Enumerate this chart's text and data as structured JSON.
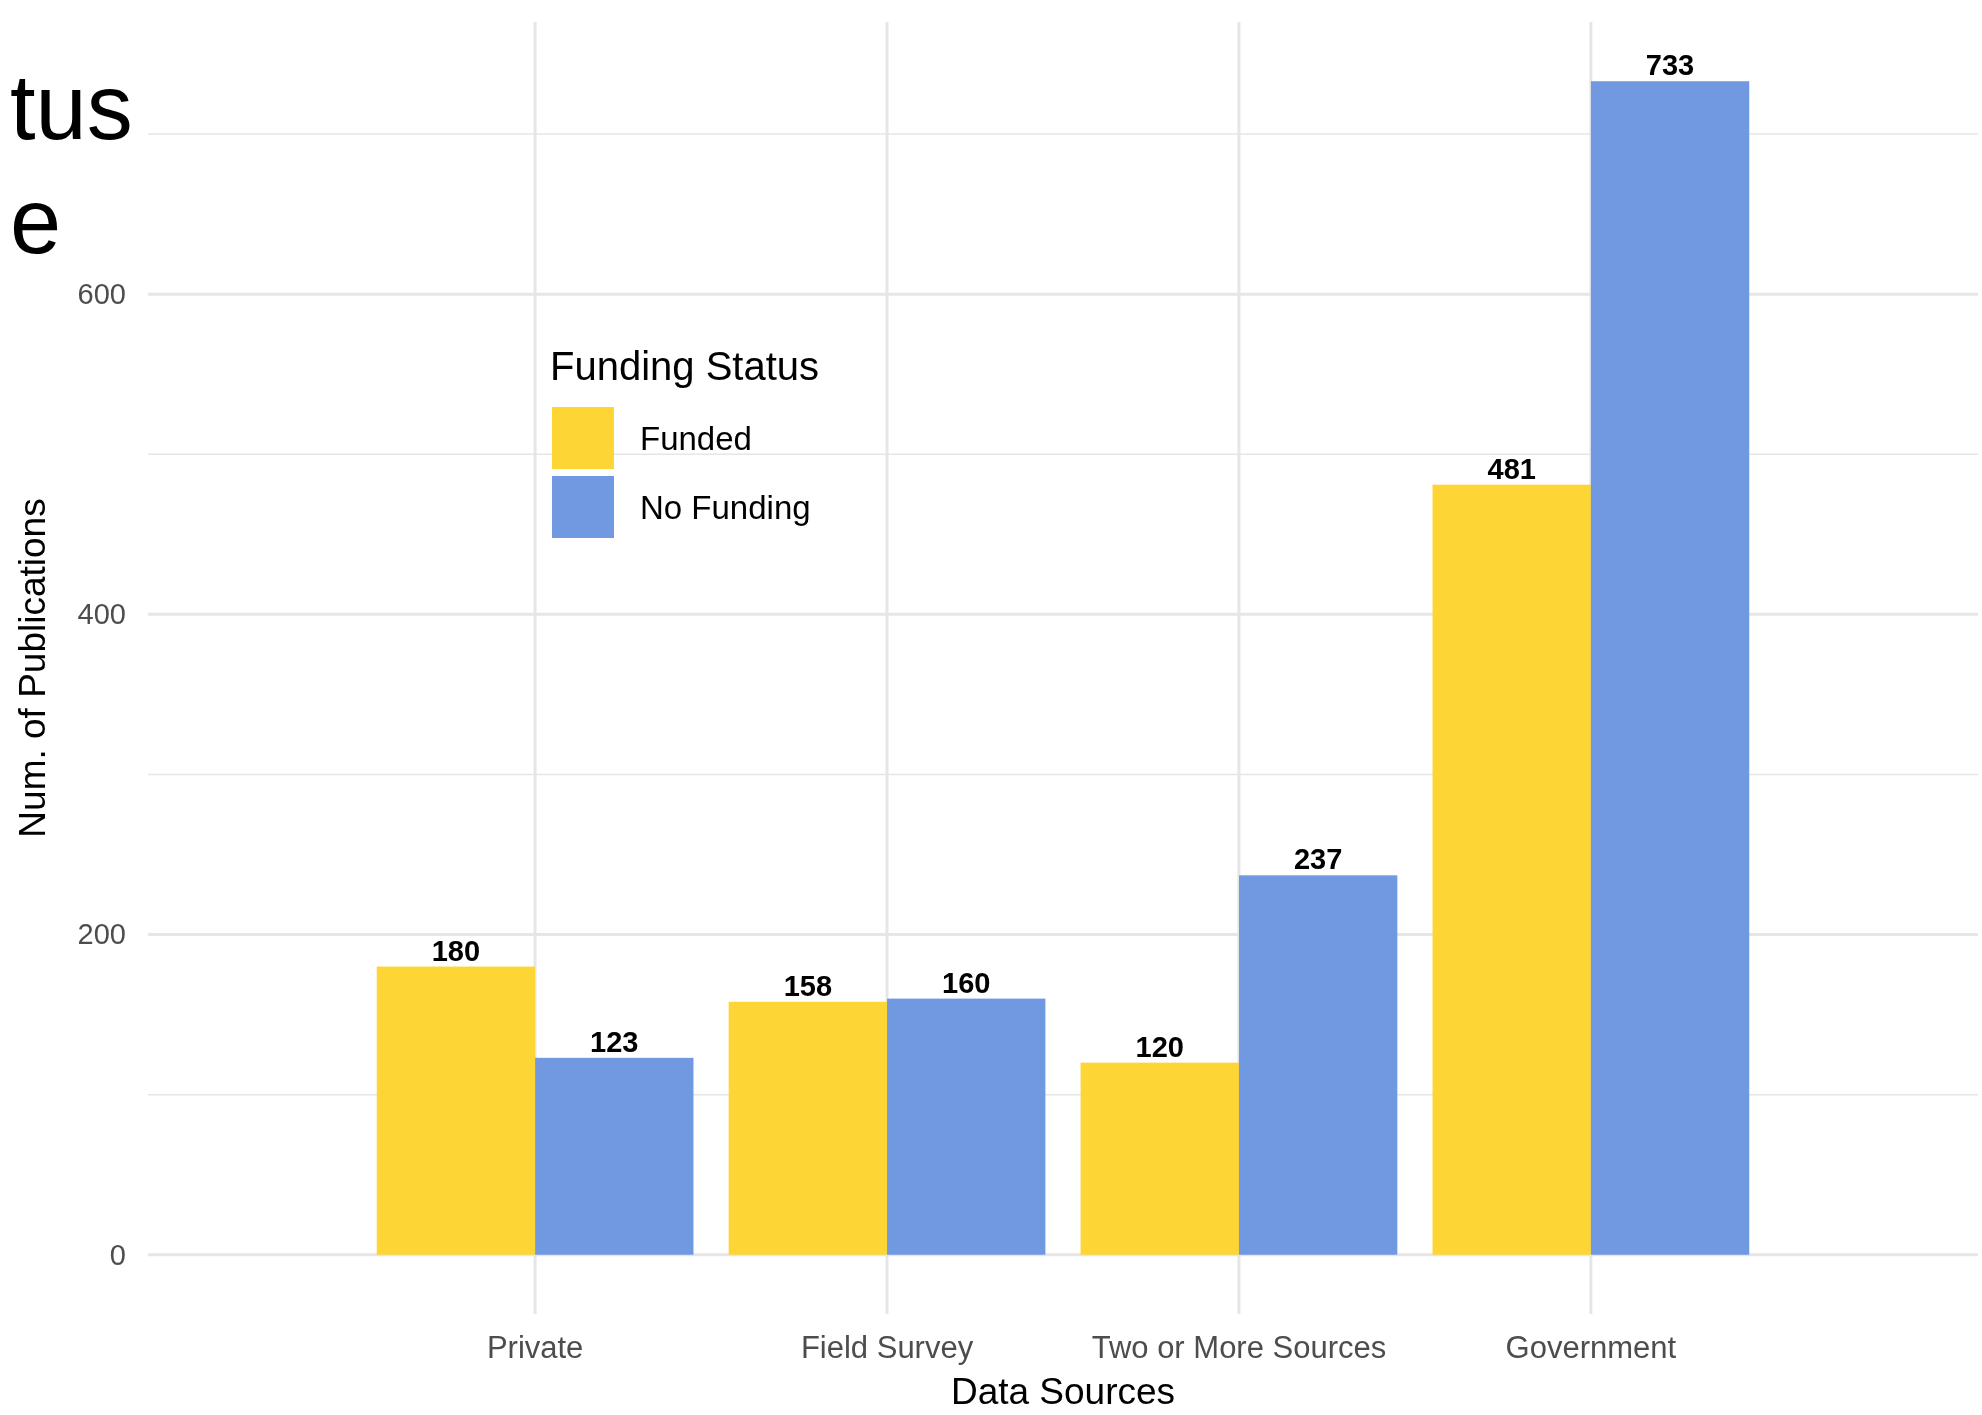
{
  "chart_data": {
    "type": "bar",
    "title": "tus\ne",
    "xlabel": "Data Sources",
    "ylabel": "Num. of Publications",
    "legend_title": "Funding Status",
    "categories": [
      "Private",
      "Field Survey",
      "Two or More Sources",
      "Government"
    ],
    "series": [
      {
        "name": "Funded",
        "color": "#fdd535",
        "values": [
          180,
          158,
          120,
          481
        ]
      },
      {
        "name": "No Funding",
        "color": "#7099e1",
        "values": [
          123,
          160,
          237,
          733
        ]
      }
    ],
    "ylim": [
      -37,
      770
    ],
    "yticks": [
      0,
      {
        "value": 100,
        "label": null
      },
      200,
      {
        "value": 300,
        "label": null
      },
      400,
      {
        "value": 500,
        "label": null
      },
      600,
      {
        "value": 700,
        "label": null
      }
    ],
    "grid": true,
    "legend": "top left",
    "data_labels": true
  }
}
